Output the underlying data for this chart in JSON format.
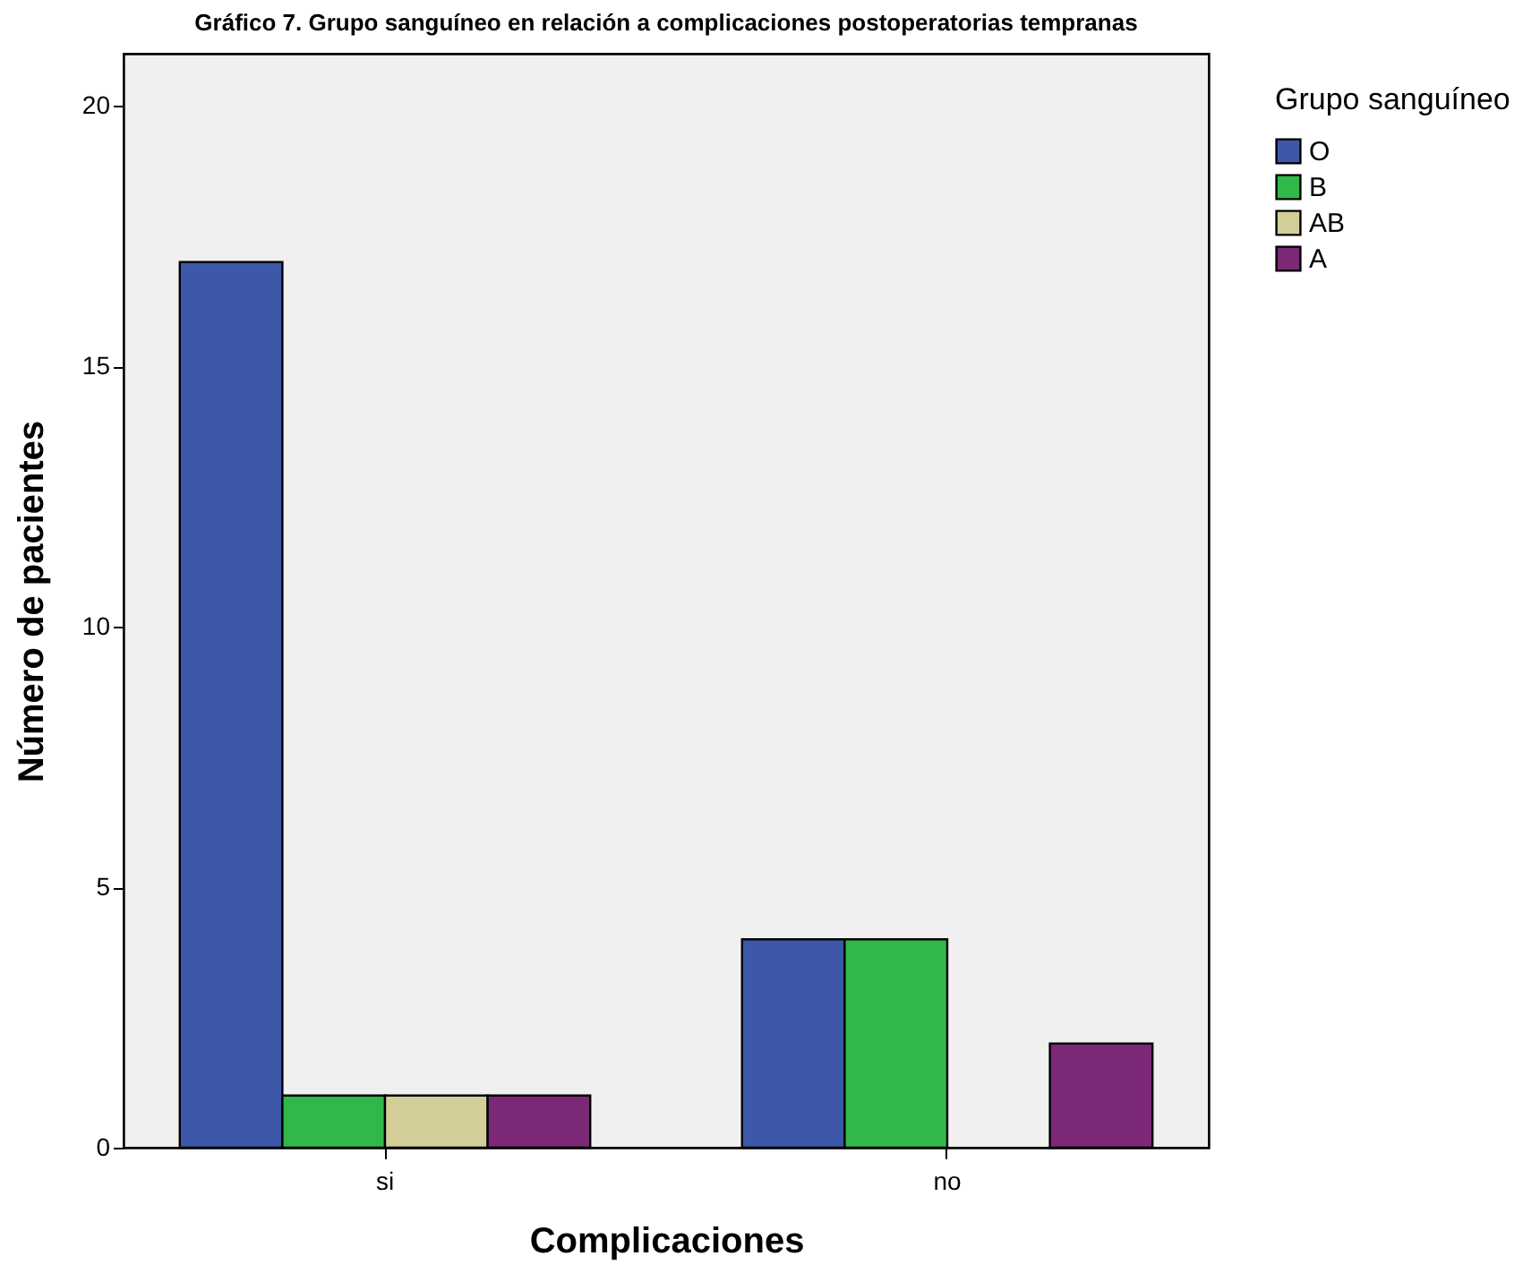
{
  "chart_data": {
    "type": "bar",
    "title": "Gráfico 7. Grupo sanguíneo en relación a complicaciones postoperatorias tempranas",
    "xlabel": "Complicaciones",
    "ylabel": "Número de pacientes",
    "legend_title": "Grupo sanguíneo",
    "categories": [
      "si",
      "no"
    ],
    "series": [
      {
        "name": "O",
        "color": "#3d58a8",
        "values": [
          17,
          4
        ]
      },
      {
        "name": "B",
        "color": "#30b84a",
        "values": [
          1,
          4
        ]
      },
      {
        "name": "AB",
        "color": "#d3ce98",
        "values": [
          1,
          null
        ]
      },
      {
        "name": "A",
        "color": "#7b2877",
        "values": [
          1,
          2
        ]
      }
    ],
    "ylim": [
      0,
      21
    ],
    "yticks": [
      0,
      5,
      10,
      15,
      20
    ],
    "grid": false,
    "legend": "top right"
  }
}
